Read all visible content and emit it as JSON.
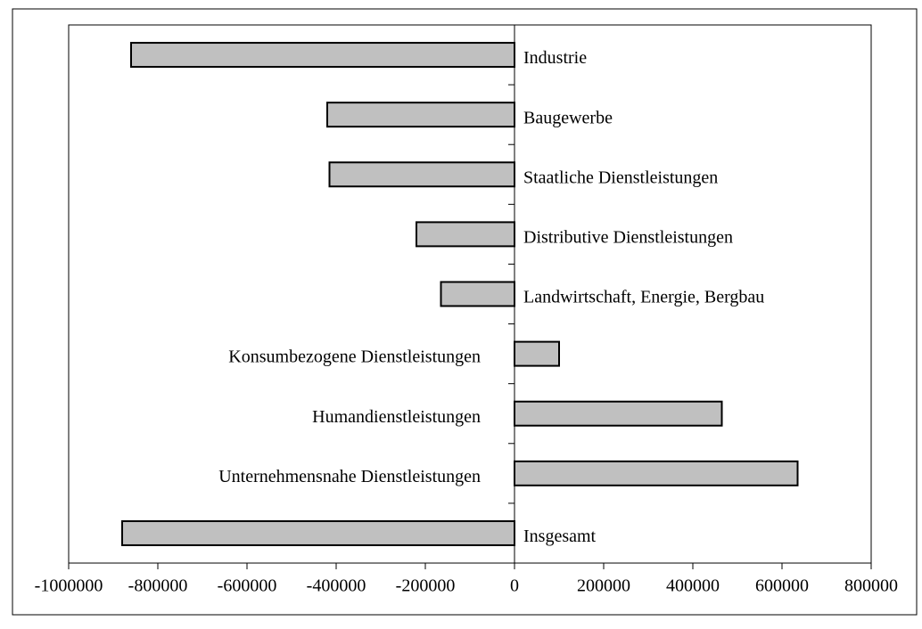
{
  "chart_data": {
    "type": "barh",
    "categories": [
      "Industrie",
      "Baugewerbe",
      "Staatliche Dienstleistungen",
      "Distributive Dienstleistungen",
      "Landwirtschaft, Energie, Bergbau",
      "Konsumbezogene Dienstleistungen",
      "Humandienstleistungen",
      "Unternehmensnahe Dienstleistungen",
      "Insgesamt"
    ],
    "values": [
      -860000,
      -420000,
      -415000,
      -220000,
      -165000,
      100000,
      465000,
      635000,
      -880000
    ],
    "color": "#c0c0c0",
    "xlim": [
      -1000000,
      800000
    ],
    "xticks": [
      -1000000,
      -800000,
      -600000,
      -400000,
      -200000,
      0,
      200000,
      400000,
      600000,
      800000
    ]
  }
}
